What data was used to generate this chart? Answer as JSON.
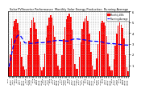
{
  "title": "Solar PV/Inverter Performance  Monthly Solar Energy Production  Running Average",
  "bar_color": "#ff0000",
  "line_color": "#0000ff",
  "background_color": "#ffffff",
  "grid_color": "#aaaaaa",
  "ylim": [
    0,
    600
  ],
  "ytick_labels": [
    "1",
    "2",
    "3",
    "4",
    "5",
    "6"
  ],
  "ytick_values": [
    100,
    200,
    300,
    400,
    500,
    600
  ],
  "monthly_values": [
    85,
    200,
    350,
    460,
    510,
    530,
    490,
    420,
    320,
    180,
    90,
    60,
    70,
    190,
    330,
    445,
    520,
    545,
    500,
    440,
    345,
    190,
    85,
    55,
    80,
    210,
    360,
    470,
    540,
    565,
    540,
    470,
    365,
    210,
    95,
    62,
    75,
    195,
    340,
    455,
    525,
    555,
    580,
    550,
    430,
    250,
    110,
    65,
    65,
    175,
    315,
    435,
    505,
    535,
    560,
    510,
    395,
    225,
    100,
    58,
    60,
    165,
    300,
    415,
    490,
    515,
    495,
    465,
    370,
    205,
    88,
    52,
    55,
    155,
    280,
    395,
    470,
    495,
    475,
    445,
    348,
    195,
    82,
    48
  ],
  "n_bars": 84,
  "months": [
    "Jan",
    "Feb",
    "Mar",
    "Apr",
    "May",
    "Jun",
    "Jul",
    "Aug",
    "Sep",
    "Oct",
    "Nov",
    "Dec"
  ],
  "start_year": 2017,
  "n_years": 7,
  "legend_labels": [
    "Monthly kWh",
    "Running Average"
  ]
}
